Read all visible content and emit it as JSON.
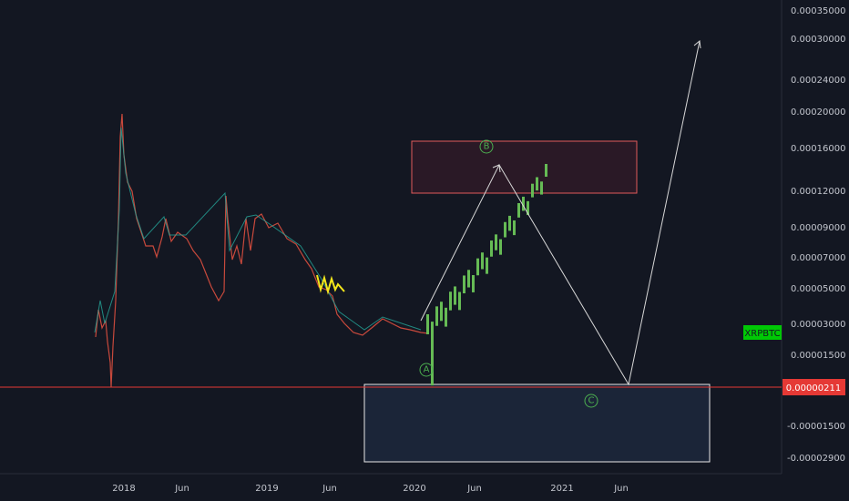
{
  "chart": {
    "symbol": "XRPBTC",
    "last_price": "0.00000211",
    "y_axis_labels": [
      "0.00035000",
      "0.00030000",
      "0.00024000",
      "0.00020000",
      "0.00016000",
      "0.00012000",
      "0.00009000",
      "0.00007000",
      "0.00005000",
      "0.00003000",
      "0.00001500",
      "-0.00001500",
      "-0.00002900"
    ],
    "x_axis_labels": [
      "2018",
      "Jun",
      "2019",
      "Jun",
      "2020",
      "Jun",
      "2021",
      "Jun"
    ],
    "wave_labels": [
      "A",
      "B",
      "C"
    ]
  }
}
